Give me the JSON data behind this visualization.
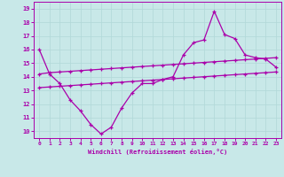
{
  "xlabel": "Windchill (Refroidissement éolien,°C)",
  "background_color": "#c8e8e8",
  "grid_color": "#b0d8d8",
  "line_color": "#aa00aa",
  "x": [
    0,
    1,
    2,
    3,
    4,
    5,
    6,
    7,
    8,
    9,
    10,
    11,
    12,
    13,
    14,
    15,
    16,
    17,
    18,
    19,
    20,
    21,
    22,
    23
  ],
  "line_zigzag": [
    16.0,
    14.2,
    13.5,
    12.3,
    11.5,
    10.5,
    9.8,
    10.3,
    11.7,
    12.8,
    13.5,
    13.5,
    13.8,
    14.0,
    15.6,
    16.5,
    16.7,
    18.8,
    17.1,
    16.8,
    15.6,
    15.4,
    15.3,
    14.7
  ],
  "line_upper": [
    14.2,
    14.3,
    14.35,
    14.4,
    14.45,
    14.5,
    14.55,
    14.6,
    14.65,
    14.7,
    14.75,
    14.8,
    14.85,
    14.9,
    14.95,
    15.0,
    15.05,
    15.1,
    15.15,
    15.2,
    15.25,
    15.3,
    15.35,
    15.4
  ],
  "line_lower": [
    13.2,
    13.25,
    13.3,
    13.35,
    13.4,
    13.45,
    13.5,
    13.55,
    13.6,
    13.65,
    13.7,
    13.75,
    13.8,
    13.85,
    13.9,
    13.95,
    14.0,
    14.05,
    14.1,
    14.15,
    14.2,
    14.25,
    14.3,
    14.35
  ],
  "ylim": [
    9.5,
    19.5
  ],
  "yticks": [
    10,
    11,
    12,
    13,
    14,
    15,
    16,
    17,
    18,
    19
  ],
  "xticks": [
    0,
    1,
    2,
    3,
    4,
    5,
    6,
    7,
    8,
    9,
    10,
    11,
    12,
    13,
    14,
    15,
    16,
    17,
    18,
    19,
    20,
    21,
    22,
    23
  ],
  "xlim": [
    -0.5,
    23.5
  ]
}
